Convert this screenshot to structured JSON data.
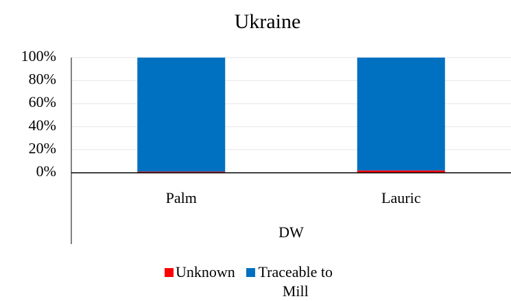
{
  "chart_data": {
    "type": "stacked_bar",
    "title": "Ukraine",
    "categories": [
      "Palm",
      "Lauric"
    ],
    "group_label": "DW",
    "series": [
      {
        "name": "Unknown",
        "color": "#ff0000",
        "values": [
          1,
          2
        ]
      },
      {
        "name": "Traceable to Mill",
        "color": "#0070c0",
        "values": [
          99,
          98
        ]
      }
    ],
    "ylim": [
      0,
      100
    ],
    "yticks": [
      {
        "value": 0,
        "label": "0%"
      },
      {
        "value": 20,
        "label": "20%"
      },
      {
        "value": 40,
        "label": "40%"
      },
      {
        "value": 60,
        "label": "60%"
      },
      {
        "value": 80,
        "label": "80%"
      },
      {
        "value": 100,
        "label": "100%"
      }
    ],
    "grid": true,
    "legend": "bottom"
  }
}
